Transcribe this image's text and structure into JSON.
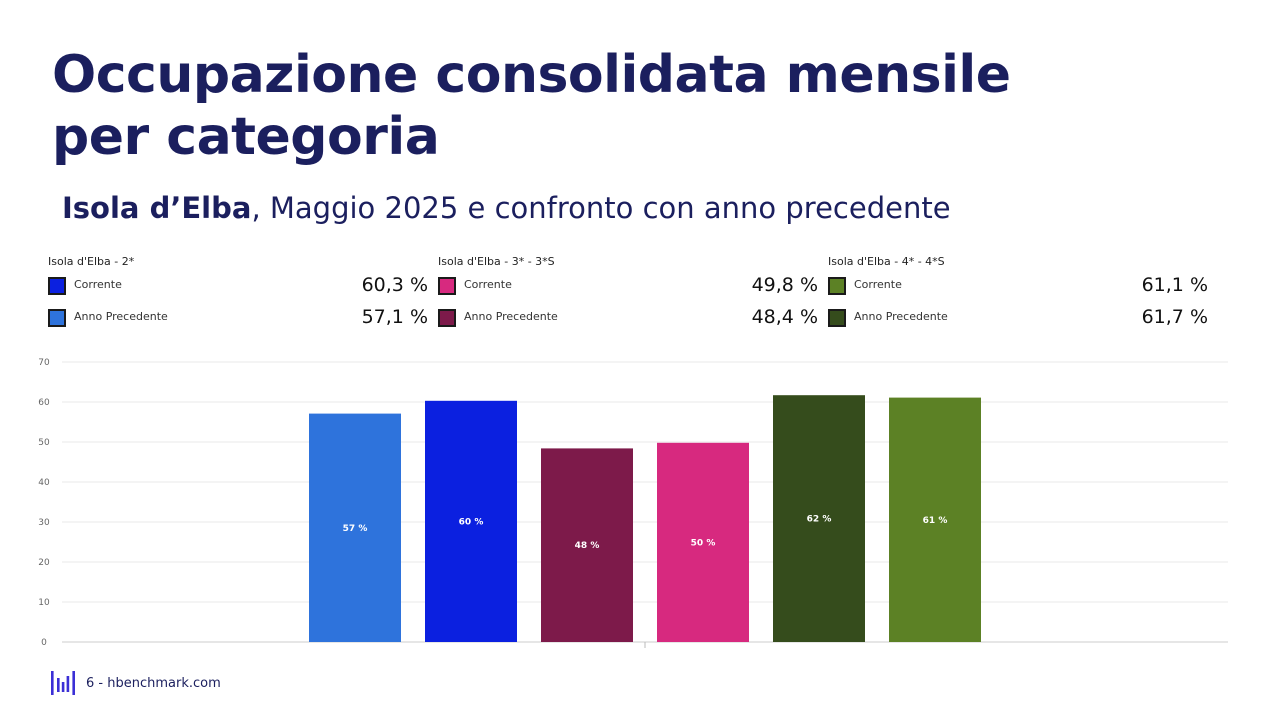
{
  "title": "Occupazione consolidata mensile\nper categoria",
  "subtitle": {
    "bold": "Isola d’Elba",
    "rest": ", Maggio 2025 e confronto con anno precedente"
  },
  "legend": [
    {
      "title": "Isola d'Elba - 2*",
      "items": [
        {
          "label": "Corrente",
          "value": "60,3 %",
          "color": "#0b20e0"
        },
        {
          "label": "Anno Precedente",
          "value": "57,1 %",
          "color": "#2e73dc"
        }
      ]
    },
    {
      "title": "Isola d'Elba - 3* - 3*S",
      "items": [
        {
          "label": "Corrente",
          "value": "49,8 %",
          "color": "#d7297f"
        },
        {
          "label": "Anno Precedente",
          "value": "48,4 %",
          "color": "#7d1a4a"
        }
      ]
    },
    {
      "title": "Isola d'Elba - 4* - 4*S",
      "items": [
        {
          "label": "Corrente",
          "value": "61,1 %",
          "color": "#5c8125"
        },
        {
          "label": "Anno Precedente",
          "value": "61,7 %",
          "color": "#354c1c"
        }
      ]
    }
  ],
  "chart_data": {
    "type": "bar",
    "ylim": [
      0,
      70
    ],
    "yticks": [
      0,
      10,
      20,
      30,
      40,
      50,
      60,
      70
    ],
    "grid": true,
    "bars": [
      {
        "value": 57.1,
        "label": "57 %",
        "color": "#2e73dc"
      },
      {
        "value": 60.3,
        "label": "60 %",
        "color": "#0b20e0"
      },
      {
        "value": 48.4,
        "label": "48 %",
        "color": "#7d1a4a"
      },
      {
        "value": 49.8,
        "label": "50 %",
        "color": "#d7297f"
      },
      {
        "value": 61.7,
        "label": "62 %",
        "color": "#354c1c"
      },
      {
        "value": 61.1,
        "label": "61 %",
        "color": "#5c8125"
      }
    ]
  },
  "footer": {
    "text": "6 - hbenchmark.com"
  }
}
